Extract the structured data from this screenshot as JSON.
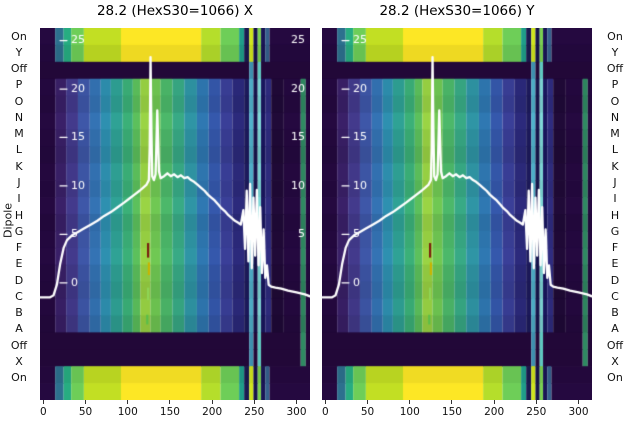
{
  "figure": {
    "background": "#ffffff",
    "y_axis_label": "Dipole",
    "row_labels": [
      "On",
      "Y",
      "Off",
      "P",
      "O",
      "N",
      "M",
      "L",
      "K",
      "J",
      "I",
      "H",
      "G",
      "F",
      "E",
      "D",
      "C",
      "B",
      "A",
      "Off",
      "X",
      "On"
    ],
    "x_tick_labels": [
      "0",
      "50",
      "100",
      "150",
      "200",
      "250",
      "300"
    ],
    "plots": [
      {
        "title": "28.2 (HexS30=1066) X"
      },
      {
        "title": "28.2 (HexS30=1066) Y"
      }
    ]
  },
  "chart_data": {
    "type": "heatmap",
    "description": "Two dipole-corrector scan heatmaps (viridis-style colormap) with an overlaid white beam-profile line; rows are dipole channels On/Y/Off/P..A/Off/X/On, x axis 0-300, inner white tick labels 0-25.",
    "x_range": [
      -4,
      316
    ],
    "x_ticks": [
      0,
      50,
      100,
      150,
      200,
      250,
      300
    ],
    "value_axis": {
      "min": -12.1,
      "max": 26.3
    },
    "inner_ticks_left": [
      25,
      20,
      15,
      10,
      5,
      0
    ],
    "inner_ticks_right": [
      25,
      20,
      15,
      10,
      5
    ],
    "row_kind": [
      "hot",
      "hot",
      "dark",
      "body",
      "body",
      "body",
      "body",
      "body",
      "body",
      "body",
      "body",
      "body",
      "body",
      "body",
      "body",
      "body",
      "body",
      "body",
      "darkline",
      "darkline",
      "hot",
      "hot"
    ],
    "row_shade": [
      0,
      0.06,
      0,
      0.03,
      0.07,
      0,
      0.05,
      0.09,
      0.02,
      0.06,
      0,
      0.07,
      0.03,
      0,
      0.06,
      0.09,
      0.04,
      0.1,
      0,
      0,
      0.05,
      0
    ],
    "segments": {
      "body": [
        [
          -4,
          14,
          "#250940"
        ],
        [
          14,
          27,
          "#3a2068"
        ],
        [
          27,
          41,
          "#433a8c"
        ],
        [
          41,
          55,
          "#3e57a8"
        ],
        [
          55,
          68,
          "#3473b4"
        ],
        [
          68,
          80,
          "#2e90b0"
        ],
        [
          80,
          94,
          "#2fa295"
        ],
        [
          94,
          106,
          "#3bb078"
        ],
        [
          106,
          115,
          "#5cc05c"
        ],
        [
          115,
          127,
          "#9ad444"
        ],
        [
          127,
          139,
          "#70c853"
        ],
        [
          139,
          153,
          "#4cb86a"
        ],
        [
          153,
          167,
          "#38aa85"
        ],
        [
          167,
          182,
          "#2f95a5"
        ],
        [
          182,
          196,
          "#2f78b2"
        ],
        [
          196,
          210,
          "#3558ac"
        ],
        [
          210,
          224,
          "#3a3f98"
        ],
        [
          224,
          238,
          "#2c2a7c"
        ],
        [
          238,
          244,
          "#1e1b5e"
        ],
        [
          244,
          249,
          "#4fb2cc"
        ],
        [
          249,
          254,
          "#18154e"
        ],
        [
          254,
          258,
          "#7fd8d8"
        ],
        [
          258,
          263,
          "#1a1760"
        ],
        [
          263,
          270,
          "#2f2c80"
        ],
        [
          270,
          285,
          "#200a38"
        ],
        [
          285,
          305,
          "#250940"
        ],
        [
          305,
          311,
          "#2f8a62"
        ],
        [
          311,
          316,
          "#250940"
        ]
      ],
      "hot": [
        [
          -4,
          14,
          "#250940"
        ],
        [
          14,
          24,
          "#2d708e"
        ],
        [
          24,
          33,
          "#27ad81"
        ],
        [
          33,
          48,
          "#6ece58"
        ],
        [
          48,
          92,
          "#c2df23"
        ],
        [
          92,
          187,
          "#fde725"
        ],
        [
          187,
          210,
          "#b5de2b"
        ],
        [
          210,
          232,
          "#6ece58"
        ],
        [
          232,
          238,
          "#1f9e89"
        ],
        [
          238,
          244,
          "#1b1b50"
        ],
        [
          244,
          249,
          "#d0e51c"
        ],
        [
          249,
          254,
          "#17144a"
        ],
        [
          254,
          258,
          "#7ad151"
        ],
        [
          258,
          263,
          "#1a1655"
        ],
        [
          263,
          268,
          "#35608d"
        ],
        [
          268,
          316,
          "#250940"
        ]
      ],
      "dark": [
        [
          -4,
          244,
          "#220838"
        ],
        [
          244,
          249,
          "#3d8fae"
        ],
        [
          249,
          254,
          "#220838"
        ],
        [
          254,
          258,
          "#5fc8c0"
        ],
        [
          258,
          316,
          "#220838"
        ]
      ],
      "darkline": [
        [
          -4,
          244,
          "#220838"
        ],
        [
          244,
          249,
          "#3d8fae"
        ],
        [
          249,
          254,
          "#220838"
        ],
        [
          254,
          258,
          "#5fc8c0"
        ],
        [
          258,
          305,
          "#220838"
        ],
        [
          305,
          311,
          "#2f8a62"
        ],
        [
          311,
          316,
          "#220838"
        ]
      ]
    },
    "line": {
      "color": "#ffffff",
      "width": 2.3,
      "points": [
        [
          -4,
          -1.5
        ],
        [
          8,
          -1.5
        ],
        [
          12,
          -1.3
        ],
        [
          16,
          -0.2
        ],
        [
          20,
          2
        ],
        [
          24,
          3.6
        ],
        [
          28,
          4.4
        ],
        [
          34,
          4.9
        ],
        [
          40,
          5.2
        ],
        [
          48,
          5.6
        ],
        [
          56,
          6
        ],
        [
          64,
          6.4
        ],
        [
          72,
          6.9
        ],
        [
          80,
          7.3
        ],
        [
          88,
          7.8
        ],
        [
          96,
          8.3
        ],
        [
          102,
          8.7
        ],
        [
          108,
          9.1
        ],
        [
          114,
          9.5
        ],
        [
          118,
          9.8
        ],
        [
          122,
          10.1
        ],
        [
          125,
          10.6
        ],
        [
          126,
          14
        ],
        [
          127,
          23.3
        ],
        [
          128,
          16
        ],
        [
          129,
          11
        ],
        [
          131,
          10.6
        ],
        [
          133,
          11.2
        ],
        [
          135,
          17.8
        ],
        [
          137,
          11.5
        ],
        [
          139,
          10.8
        ],
        [
          143,
          11
        ],
        [
          147,
          11.3
        ],
        [
          151,
          11
        ],
        [
          155,
          11.2
        ],
        [
          159,
          10.9
        ],
        [
          163,
          11.1
        ],
        [
          167,
          10.8
        ],
        [
          171,
          10.9
        ],
        [
          175,
          10.6
        ],
        [
          179,
          10.4
        ],
        [
          183,
          10.1
        ],
        [
          187,
          9.8
        ],
        [
          191,
          9.5
        ],
        [
          195,
          9.1
        ],
        [
          199,
          8.8
        ],
        [
          203,
          8.5
        ],
        [
          207,
          8.1
        ],
        [
          211,
          7.7
        ],
        [
          215,
          7.4
        ],
        [
          219,
          7
        ],
        [
          223,
          6.7
        ],
        [
          227,
          6.4
        ],
        [
          231,
          6.2
        ],
        [
          234,
          6
        ],
        [
          237,
          7.5
        ],
        [
          239,
          3.5
        ],
        [
          241,
          9.5
        ],
        [
          243,
          2.2
        ],
        [
          245,
          10.2
        ],
        [
          247,
          1.5
        ],
        [
          249,
          8.8
        ],
        [
          251,
          2.8
        ],
        [
          253,
          9.6
        ],
        [
          255,
          1.8
        ],
        [
          257,
          7.8
        ],
        [
          259,
          1
        ],
        [
          261,
          5.5
        ],
        [
          263,
          0.5
        ],
        [
          265,
          1.8
        ],
        [
          267,
          -0.2
        ],
        [
          270,
          -0.4
        ],
        [
          275,
          -0.5
        ],
        [
          282,
          -0.6
        ],
        [
          290,
          -0.8
        ],
        [
          300,
          -1
        ],
        [
          310,
          -1.2
        ],
        [
          316,
          -1.4
        ]
      ]
    },
    "markers": [
      {
        "x": 124,
        "v": [
          2.6,
          4.1
        ],
        "color": "#7a1f10"
      },
      {
        "x": 125,
        "v": [
          0.8,
          2.1
        ],
        "color": "#c8b400"
      },
      {
        "x": 124,
        "v": [
          -1.8,
          -0.5
        ],
        "color": "#8fd455"
      },
      {
        "x": 123,
        "v": [
          -4.3,
          -3.3
        ],
        "color": "#5abf4a"
      }
    ]
  }
}
